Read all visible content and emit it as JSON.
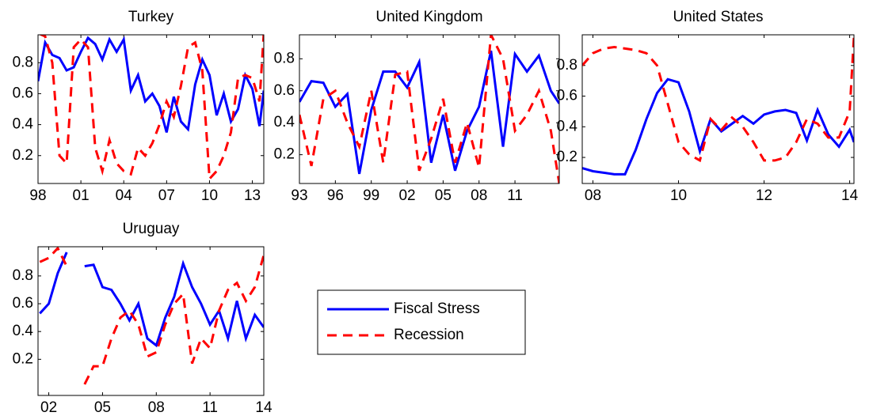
{
  "chart_data": [
    {
      "type": "line",
      "title": "Turkey",
      "x": [
        1998,
        1998.5,
        1999,
        1999.5,
        2000,
        2000.5,
        2001,
        2001.5,
        2002,
        2002.5,
        2003,
        2003.5,
        2004,
        2004.5,
        2005,
        2005.5,
        2006,
        2006.5,
        2007,
        2007.5,
        2008,
        2008.5,
        2009,
        2009.5,
        2010,
        2010.5,
        2011,
        2011.5,
        2012,
        2012.5,
        2013,
        2013.5,
        2013.8
      ],
      "series": [
        {
          "name": "Fiscal Stress",
          "color": "#0000ff",
          "values": [
            0.68,
            0.93,
            0.85,
            0.83,
            0.75,
            0.77,
            0.87,
            0.96,
            0.92,
            0.82,
            0.95,
            0.87,
            0.95,
            0.62,
            0.72,
            0.55,
            0.6,
            0.52,
            0.35,
            0.58,
            0.42,
            0.37,
            0.66,
            0.82,
            0.72,
            0.46,
            0.6,
            0.42,
            0.5,
            0.72,
            0.63,
            0.39,
            0.62
          ]
        },
        {
          "name": "Recession",
          "color": "#ff0000",
          "values": [
            0.99,
            0.97,
            0.8,
            0.2,
            0.15,
            0.9,
            0.95,
            0.9,
            0.25,
            0.1,
            0.3,
            0.15,
            0.1,
            0.08,
            0.25,
            0.2,
            0.28,
            0.4,
            0.55,
            0.45,
            0.65,
            0.9,
            0.93,
            0.75,
            0.05,
            0.1,
            0.2,
            0.35,
            0.7,
            0.72,
            0.7,
            0.55,
            0.99
          ]
        }
      ],
      "xlim": [
        1998,
        2013.8
      ],
      "ylim": [
        0.02,
        0.98
      ],
      "yticks": [
        0.2,
        0.4,
        0.6,
        0.8
      ],
      "xticks": [
        {
          "value": 1998,
          "label": "98"
        },
        {
          "value": 2001,
          "label": "01"
        },
        {
          "value": 2004,
          "label": "04"
        },
        {
          "value": 2007,
          "label": "07"
        },
        {
          "value": 2010,
          "label": "10"
        },
        {
          "value": 2013,
          "label": "13"
        }
      ]
    },
    {
      "type": "line",
      "title": "United Kingdom",
      "x": [
        1993,
        1994,
        1995,
        1996,
        1997,
        1998,
        1999,
        2000,
        2001,
        2002,
        2003,
        2004,
        2005,
        2006,
        2007,
        2008,
        2009,
        2010,
        2011,
        2012,
        2013,
        2014,
        2014.7
      ],
      "series": [
        {
          "name": "Fiscal Stress",
          "color": "#0000ff",
          "values": [
            0.53,
            0.66,
            0.65,
            0.5,
            0.58,
            0.08,
            0.48,
            0.72,
            0.72,
            0.62,
            0.78,
            0.15,
            0.45,
            0.1,
            0.35,
            0.5,
            0.85,
            0.25,
            0.83,
            0.72,
            0.82,
            0.6,
            0.52
          ]
        },
        {
          "name": "Recession",
          "color": "#ff0000",
          "values": [
            0.45,
            0.13,
            0.55,
            0.6,
            0.4,
            0.25,
            0.6,
            0.15,
            0.7,
            0.72,
            0.1,
            0.3,
            0.55,
            0.15,
            0.4,
            0.12,
            0.95,
            0.8,
            0.35,
            0.45,
            0.6,
            0.35,
            0.02
          ]
        }
      ],
      "xlim": [
        1993,
        2014.7
      ],
      "ylim": [
        0.02,
        0.95
      ],
      "yticks": [
        0.2,
        0.4,
        0.6,
        0.8
      ],
      "xticks": [
        {
          "value": 1993,
          "label": "93"
        },
        {
          "value": 1996,
          "label": "96"
        },
        {
          "value": 1999,
          "label": "99"
        },
        {
          "value": 2002,
          "label": "02"
        },
        {
          "value": 2005,
          "label": "05"
        },
        {
          "value": 2008,
          "label": "08"
        },
        {
          "value": 2011,
          "label": "11"
        }
      ]
    },
    {
      "type": "line",
      "title": "United States",
      "x": [
        2007.75,
        2008,
        2008.25,
        2008.5,
        2008.75,
        2009,
        2009.25,
        2009.5,
        2009.75,
        2010,
        2010.25,
        2010.5,
        2010.75,
        2011,
        2011.25,
        2011.5,
        2011.75,
        2012,
        2012.25,
        2012.5,
        2012.75,
        2013,
        2013.25,
        2013.5,
        2013.75,
        2014,
        2014.1
      ],
      "series": [
        {
          "name": "Fiscal Stress",
          "color": "#0000ff",
          "values": [
            0.13,
            0.11,
            0.1,
            0.09,
            0.09,
            0.25,
            0.45,
            0.62,
            0.71,
            0.69,
            0.5,
            0.24,
            0.45,
            0.37,
            0.42,
            0.47,
            0.42,
            0.48,
            0.5,
            0.51,
            0.49,
            0.31,
            0.51,
            0.35,
            0.27,
            0.38,
            0.3
          ]
        },
        {
          "name": "Recession",
          "color": "#ff0000",
          "values": [
            0.8,
            0.88,
            0.91,
            0.92,
            0.91,
            0.9,
            0.88,
            0.8,
            0.55,
            0.3,
            0.22,
            0.18,
            0.45,
            0.38,
            0.46,
            0.4,
            0.3,
            0.18,
            0.18,
            0.2,
            0.3,
            0.45,
            0.42,
            0.33,
            0.33,
            0.5,
            0.99
          ]
        }
      ],
      "xlim": [
        2007.75,
        2014.1
      ],
      "ylim": [
        0.03,
        1.0
      ],
      "yticks": [
        0.2,
        0.4,
        0.6,
        0.8
      ],
      "xticks": [
        {
          "value": 2008,
          "label": "08"
        },
        {
          "value": 2010,
          "label": "10"
        },
        {
          "value": 2012,
          "label": "12"
        },
        {
          "value": 2014,
          "label": "14"
        }
      ]
    },
    {
      "type": "line",
      "title": "Uruguay",
      "x": [
        2001.5,
        2002,
        2002.5,
        2003,
        2003.5,
        2004,
        2004.5,
        2005,
        2005.5,
        2006,
        2006.5,
        2007,
        2007.5,
        2008,
        2008.5,
        2009,
        2009.5,
        2010,
        2010.5,
        2011,
        2011.5,
        2012,
        2012.5,
        2013,
        2013.5,
        2014
      ],
      "series": [
        {
          "name": "Fiscal Stress",
          "color": "#0000ff",
          "values": [
            0.53,
            0.6,
            0.82,
            0.97,
            null,
            0.87,
            0.88,
            0.72,
            0.7,
            0.6,
            0.48,
            0.6,
            0.35,
            0.3,
            0.5,
            0.65,
            0.89,
            0.72,
            0.6,
            0.45,
            0.55,
            0.35,
            0.62,
            0.35,
            0.52,
            0.43
          ]
        },
        {
          "name": "Recession",
          "color": "#ff0000",
          "values": [
            0.9,
            0.93,
            1.0,
            0.87,
            null,
            0.02,
            0.15,
            0.15,
            0.35,
            0.5,
            0.55,
            0.45,
            0.22,
            0.25,
            0.45,
            0.6,
            0.67,
            0.17,
            0.35,
            0.28,
            0.55,
            0.7,
            0.75,
            0.62,
            0.72,
            0.95
          ]
        }
      ],
      "xlim": [
        2001.4,
        2014
      ],
      "ylim": [
        -0.06,
        1.01
      ],
      "yticks": [
        0.2,
        0.4,
        0.6,
        0.8
      ],
      "xticks": [
        {
          "value": 2002,
          "label": "02"
        },
        {
          "value": 2005,
          "label": "05"
        },
        {
          "value": 2008,
          "label": "08"
        },
        {
          "value": 2011,
          "label": "11"
        },
        {
          "value": 2014,
          "label": "14"
        }
      ]
    }
  ]
}
